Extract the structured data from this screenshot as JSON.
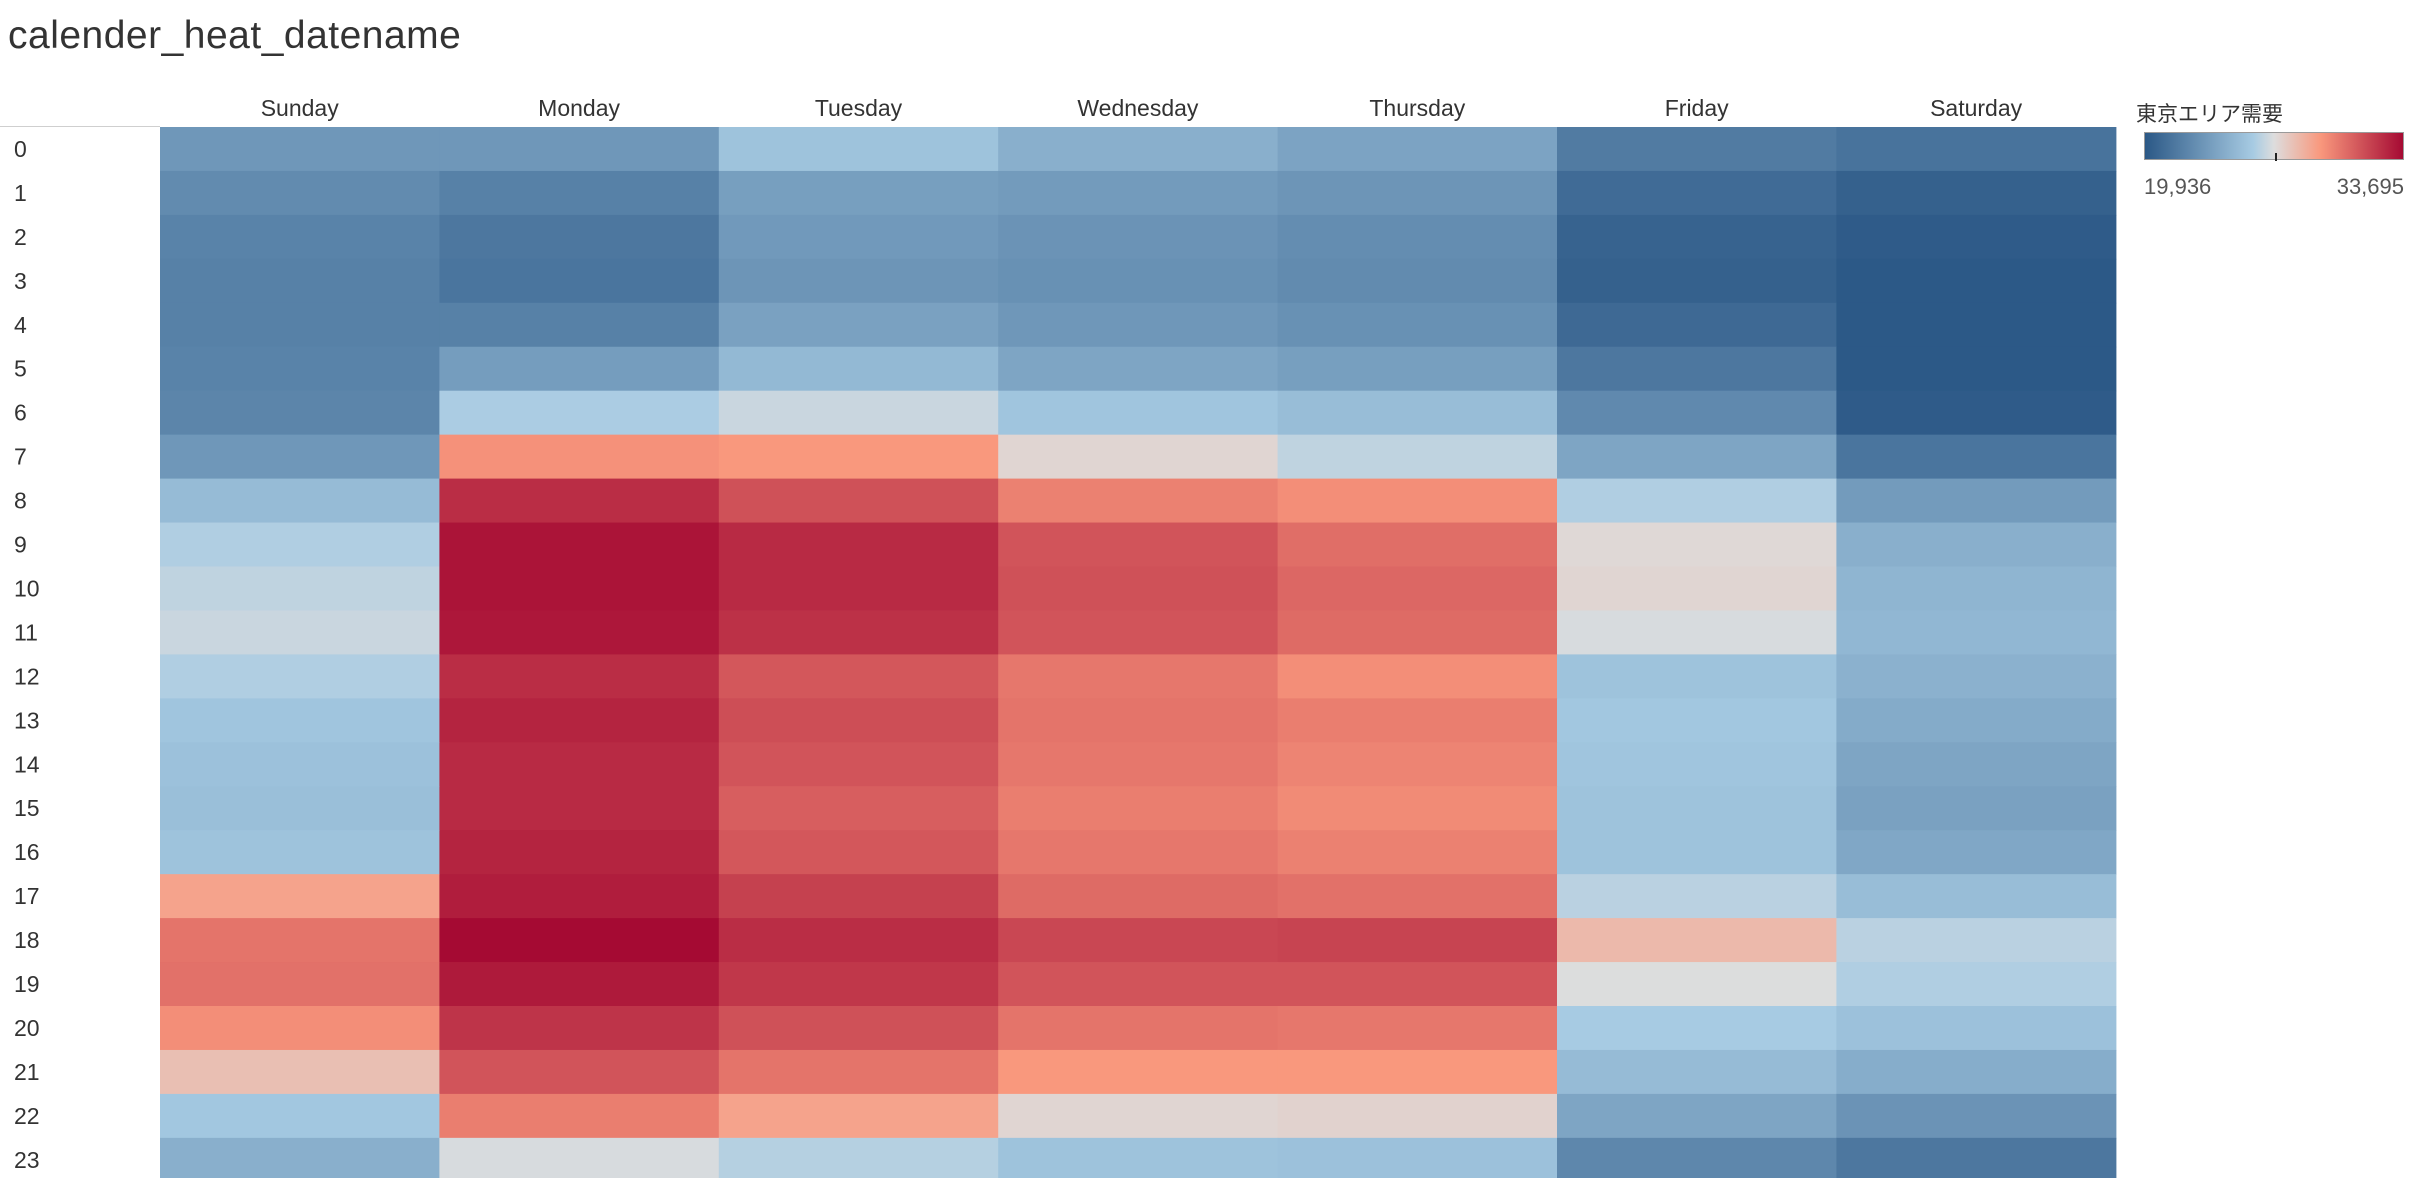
{
  "chart_data": {
    "type": "heatmap",
    "title": "calender_heat_datename",
    "x_categories": [
      "Sunday",
      "Monday",
      "Tuesday",
      "Wednesday",
      "Thursday",
      "Friday",
      "Saturday"
    ],
    "y_categories": [
      "0",
      "1",
      "2",
      "3",
      "4",
      "5",
      "6",
      "7",
      "8",
      "9",
      "10",
      "11",
      "12",
      "13",
      "14",
      "15",
      "16",
      "17",
      "18",
      "19",
      "20",
      "21",
      "22",
      "23"
    ],
    "legend": {
      "title": "東京エリア需要",
      "min_label": "19,936",
      "max_label": "33,695",
      "min": 19936,
      "max": 33695,
      "center": 26815,
      "placement": "top-right"
    },
    "colors": {
      "low": "#2b5886",
      "mid_low": "#a7cbe3",
      "mid": "#dddddd",
      "mid_high": "#f9987d",
      "high": "#a50a33"
    },
    "values": [
      [
        23100,
        23100,
        25300,
        24300,
        23700,
        21700,
        21300
      ],
      [
        22500,
        22000,
        23500,
        23300,
        23000,
        20900,
        20400
      ],
      [
        22100,
        21500,
        23200,
        22900,
        22600,
        20500,
        20100
      ],
      [
        22000,
        21400,
        23000,
        22800,
        22500,
        20400,
        20000
      ],
      [
        22000,
        22000,
        23600,
        23100,
        22800,
        20800,
        20000
      ],
      [
        22100,
        23400,
        24800,
        23800,
        23500,
        21500,
        20000
      ],
      [
        22200,
        25800,
        26400,
        25400,
        25000,
        22400,
        20100
      ],
      [
        23100,
        29500,
        29300,
        27100,
        26200,
        23800,
        21400
      ],
      [
        24900,
        32600,
        31500,
        30000,
        29600,
        25900,
        23300
      ],
      [
        25900,
        33400,
        32700,
        31400,
        30600,
        27000,
        24300
      ],
      [
        26200,
        33400,
        32700,
        31500,
        30800,
        27100,
        24600
      ],
      [
        26400,
        33300,
        32500,
        31400,
        30700,
        26700,
        24700
      ],
      [
        25900,
        32600,
        31300,
        30300,
        29600,
        25300,
        24400
      ],
      [
        25400,
        32900,
        31600,
        30400,
        30100,
        25500,
        24100
      ],
      [
        25200,
        32700,
        31400,
        30300,
        29900,
        25400,
        23800
      ],
      [
        25100,
        32700,
        31100,
        30100,
        29700,
        25300,
        23600
      ],
      [
        25300,
        32900,
        31300,
        30300,
        30000,
        25300,
        23900
      ],
      [
        28900,
        33100,
        32000,
        30700,
        30500,
        26100,
        25000
      ],
      [
        30400,
        33700,
        32600,
        31800,
        31900,
        28100,
        26100
      ],
      [
        30500,
        33200,
        32300,
        31400,
        31400,
        26800,
        25900
      ],
      [
        29600,
        32400,
        31500,
        30400,
        30300,
        25700,
        25200
      ],
      [
        27900,
        31400,
        30400,
        29300,
        29300,
        24900,
        24200
      ],
      [
        25500,
        30100,
        28900,
        27100,
        27200,
        23800,
        22900
      ],
      [
        24300,
        26700,
        26000,
        25300,
        25200,
        22300,
        21500
      ]
    ]
  }
}
